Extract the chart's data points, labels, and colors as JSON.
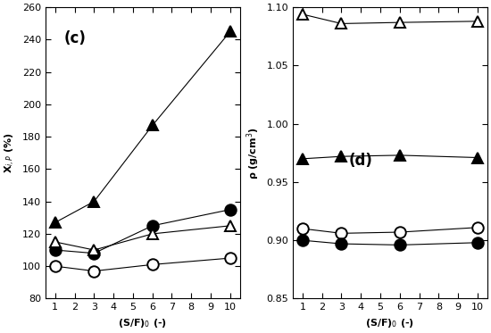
{
  "x_data": [
    1,
    3,
    6,
    10
  ],
  "x_ticks": [
    1,
    2,
    3,
    4,
    5,
    6,
    7,
    8,
    9,
    10
  ],
  "xlabel": "(S/F)$_0$ (-)",
  "c_ylabel": "X$_{i,P}$ (%)",
  "c_label": "(c)",
  "c_ylim": [
    80,
    260
  ],
  "c_yticks": [
    80,
    100,
    120,
    140,
    160,
    180,
    200,
    220,
    240,
    260
  ],
  "c_open_circle": [
    100,
    97,
    101,
    105
  ],
  "c_filled_circle": [
    110,
    108,
    125,
    135
  ],
  "c_open_triangle": [
    115,
    110,
    120,
    125
  ],
  "c_filled_triangle": [
    127,
    140,
    187,
    245
  ],
  "d_ylabel": "ρ (g/cm$^3$)",
  "d_label": "(d)",
  "d_ylim": [
    0.85,
    1.1
  ],
  "d_yticks": [
    0.85,
    0.9,
    0.95,
    1.0,
    1.05,
    1.1
  ],
  "d_open_triangle": [
    1.094,
    1.086,
    1.087,
    1.088
  ],
  "d_filled_triangle": [
    0.97,
    0.972,
    0.973,
    0.971
  ],
  "d_open_circle": [
    0.91,
    0.906,
    0.907,
    0.911
  ],
  "d_filled_circle": [
    0.9,
    0.897,
    0.896,
    0.898
  ],
  "marker_size": 9,
  "line_width": 0.8,
  "font_size": 8,
  "label_font_size": 12
}
